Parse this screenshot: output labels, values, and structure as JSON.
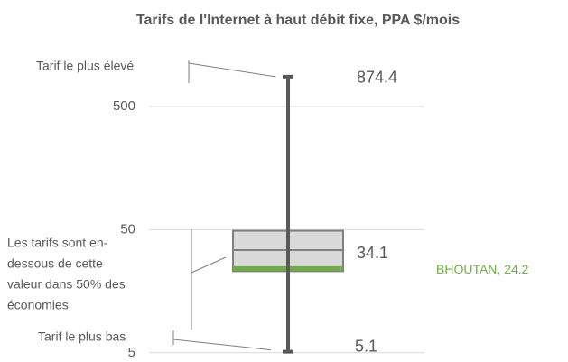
{
  "chart_data": {
    "type": "box",
    "title": "Tarifs de l'Internet à haut débit fixe, PPA $/mois",
    "log_scale": true,
    "grid": true,
    "ylim": [
      4.9,
      1330
    ],
    "yticks": [
      5,
      50,
      500
    ],
    "min": 5.1,
    "q1": 23,
    "median": 34.1,
    "q3": 49,
    "max": 874.4,
    "box_color": "#d9d9d9",
    "whisker_color": "#595959",
    "highlight": {
      "name": "BHOUTAN",
      "value": 24.2,
      "label": "BHOUTAN, 24.2",
      "color": "#70ad47"
    },
    "annotations": [
      {
        "lines": [
          "Tarif le plus élevé"
        ]
      },
      {
        "lines": [
          "Les tarifs sont en-",
          "dessous de cette",
          "valeur dans 50% des",
          "économies"
        ]
      },
      {
        "lines": [
          "Tarif le plus bas"
        ]
      }
    ]
  }
}
